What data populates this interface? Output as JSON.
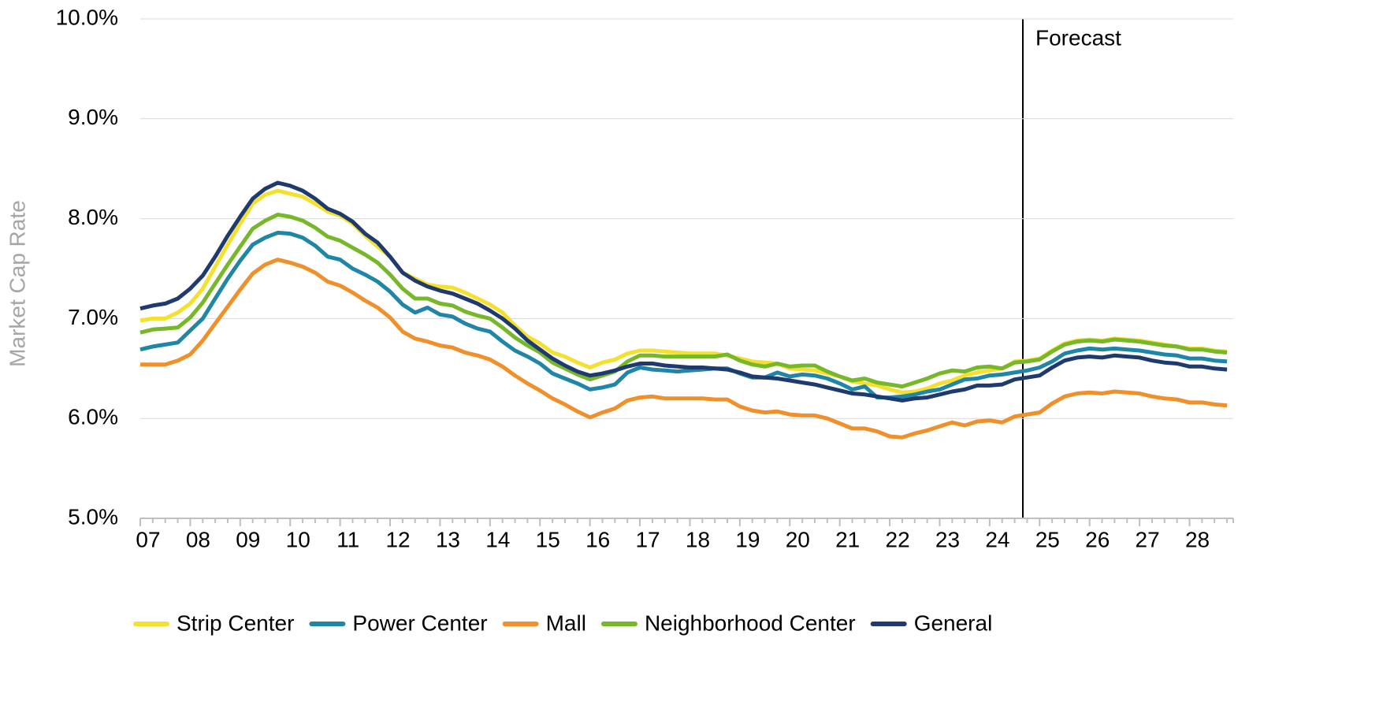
{
  "chart_data": {
    "type": "line",
    "y_label": "Market Cap Rate",
    "annotation": "Forecast",
    "categories": [
      "07",
      null,
      null,
      null,
      "08",
      null,
      null,
      null,
      "09",
      null,
      null,
      null,
      "10",
      null,
      null,
      null,
      "11",
      null,
      null,
      null,
      "12",
      null,
      null,
      null,
      "13",
      null,
      null,
      null,
      "14",
      null,
      null,
      null,
      "15",
      null,
      null,
      null,
      "16",
      null,
      null,
      null,
      "17",
      null,
      null,
      null,
      "18",
      null,
      null,
      null,
      "19",
      null,
      null,
      null,
      "20",
      null,
      null,
      null,
      "21",
      null,
      null,
      null,
      "22",
      null,
      null,
      null,
      "23",
      null,
      null,
      null,
      "24",
      null,
      null,
      null,
      "25",
      null,
      null,
      null,
      "26",
      null,
      null,
      null,
      "27",
      null,
      null,
      null,
      "28",
      null,
      null,
      null
    ],
    "ylim": [
      5,
      10
    ],
    "yticks": [
      {
        "value": 5,
        "label": "5.0%"
      },
      {
        "value": 6,
        "label": "6.0%"
      },
      {
        "value": 7,
        "label": "7.0%"
      },
      {
        "value": 8,
        "label": "8.0%"
      },
      {
        "value": 9,
        "label": "9.0%"
      },
      {
        "value": 10,
        "label": "10.0%"
      }
    ],
    "grid": true,
    "legend": "bottom",
    "series": [
      {
        "name": "Strip Center",
        "color": "#f5e030",
        "values": [
          6.98,
          7.0,
          7.0,
          7.06,
          7.15,
          7.3,
          7.52,
          7.74,
          7.95,
          8.15,
          8.24,
          8.28,
          8.25,
          8.22,
          8.15,
          8.07,
          8.03,
          7.95,
          7.83,
          7.72,
          7.62,
          7.46,
          7.4,
          7.34,
          7.32,
          7.31,
          7.26,
          7.2,
          7.14,
          7.06,
          6.93,
          6.82,
          6.75,
          6.66,
          6.62,
          6.56,
          6.51,
          6.56,
          6.59,
          6.65,
          6.68,
          6.68,
          6.67,
          6.66,
          6.65,
          6.65,
          6.65,
          6.63,
          6.6,
          6.57,
          6.56,
          6.55,
          6.5,
          6.49,
          6.48,
          6.45,
          6.42,
          6.37,
          6.35,
          6.33,
          6.29,
          6.26,
          6.27,
          6.3,
          6.35,
          6.38,
          6.43,
          6.46,
          6.48,
          6.5,
          6.57,
          6.58,
          6.6,
          6.68,
          6.75,
          6.78,
          6.79,
          6.78,
          6.8,
          6.79,
          6.78,
          6.76,
          6.74,
          6.72,
          6.7,
          6.7,
          6.68,
          6.67
        ]
      },
      {
        "name": "Power Center",
        "color": "#1f86a8",
        "values": [
          6.69,
          6.72,
          6.74,
          6.76,
          6.88,
          7.0,
          7.2,
          7.4,
          7.58,
          7.74,
          7.81,
          7.86,
          7.85,
          7.81,
          7.73,
          7.62,
          7.59,
          7.5,
          7.44,
          7.37,
          7.27,
          7.14,
          7.06,
          7.11,
          7.04,
          7.02,
          6.95,
          6.9,
          6.87,
          6.77,
          6.68,
          6.62,
          6.55,
          6.45,
          6.4,
          6.35,
          6.29,
          6.31,
          6.34,
          6.46,
          6.51,
          6.49,
          6.48,
          6.47,
          6.48,
          6.49,
          6.5,
          6.5,
          6.45,
          6.41,
          6.41,
          6.46,
          6.42,
          6.44,
          6.43,
          6.4,
          6.35,
          6.29,
          6.32,
          6.21,
          6.21,
          6.22,
          6.24,
          6.27,
          6.29,
          6.34,
          6.39,
          6.4,
          6.43,
          6.44,
          6.46,
          6.48,
          6.51,
          6.57,
          6.65,
          6.68,
          6.7,
          6.69,
          6.7,
          6.69,
          6.68,
          6.66,
          6.64,
          6.63,
          6.6,
          6.6,
          6.58,
          6.57
        ]
      },
      {
        "name": "Mall",
        "color": "#f0902a",
        "values": [
          6.54,
          6.54,
          6.54,
          6.58,
          6.64,
          6.78,
          6.95,
          7.12,
          7.29,
          7.45,
          7.54,
          7.59,
          7.56,
          7.52,
          7.46,
          7.37,
          7.33,
          7.26,
          7.18,
          7.11,
          7.01,
          6.87,
          6.8,
          6.77,
          6.73,
          6.71,
          6.66,
          6.63,
          6.59,
          6.52,
          6.43,
          6.35,
          6.28,
          6.2,
          6.14,
          6.07,
          6.01,
          6.06,
          6.1,
          6.18,
          6.21,
          6.22,
          6.2,
          6.2,
          6.2,
          6.2,
          6.19,
          6.19,
          6.12,
          6.08,
          6.06,
          6.07,
          6.04,
          6.03,
          6.03,
          6.0,
          5.95,
          5.9,
          5.9,
          5.87,
          5.82,
          5.81,
          5.85,
          5.88,
          5.92,
          5.96,
          5.93,
          5.97,
          5.98,
          5.96,
          6.02,
          6.04,
          6.06,
          6.15,
          6.22,
          6.25,
          6.26,
          6.25,
          6.27,
          6.26,
          6.25,
          6.22,
          6.2,
          6.19,
          6.16,
          6.16,
          6.14,
          6.13
        ]
      },
      {
        "name": "Neighborhood Center",
        "color": "#76b82a",
        "values": [
          6.86,
          6.89,
          6.9,
          6.91,
          7.01,
          7.16,
          7.35,
          7.54,
          7.72,
          7.9,
          7.98,
          8.04,
          8.02,
          7.98,
          7.91,
          7.82,
          7.78,
          7.71,
          7.64,
          7.56,
          7.44,
          7.3,
          7.2,
          7.2,
          7.15,
          7.13,
          7.07,
          7.03,
          7.0,
          6.91,
          6.81,
          6.73,
          6.66,
          6.56,
          6.5,
          6.44,
          6.39,
          6.43,
          6.47,
          6.57,
          6.63,
          6.63,
          6.62,
          6.62,
          6.62,
          6.62,
          6.62,
          6.64,
          6.58,
          6.54,
          6.52,
          6.55,
          6.52,
          6.53,
          6.53,
          6.47,
          6.42,
          6.38,
          6.4,
          6.36,
          6.34,
          6.32,
          6.36,
          6.4,
          6.45,
          6.48,
          6.47,
          6.51,
          6.52,
          6.5,
          6.56,
          6.57,
          6.59,
          6.67,
          6.74,
          6.77,
          6.78,
          6.77,
          6.79,
          6.78,
          6.77,
          6.75,
          6.73,
          6.72,
          6.69,
          6.69,
          6.67,
          6.66
        ]
      },
      {
        "name": "General",
        "color": "#1f3a6e",
        "values": [
          7.1,
          7.13,
          7.15,
          7.2,
          7.3,
          7.43,
          7.62,
          7.83,
          8.02,
          8.2,
          8.3,
          8.36,
          8.33,
          8.28,
          8.2,
          8.1,
          8.05,
          7.97,
          7.85,
          7.76,
          7.62,
          7.46,
          7.38,
          7.32,
          7.28,
          7.25,
          7.2,
          7.15,
          7.08,
          7.0,
          6.9,
          6.78,
          6.69,
          6.6,
          6.53,
          6.47,
          6.43,
          6.45,
          6.48,
          6.52,
          6.55,
          6.55,
          6.53,
          6.52,
          6.51,
          6.51,
          6.5,
          6.49,
          6.46,
          6.42,
          6.41,
          6.4,
          6.38,
          6.36,
          6.34,
          6.31,
          6.28,
          6.25,
          6.24,
          6.22,
          6.2,
          6.18,
          6.2,
          6.21,
          6.24,
          6.27,
          6.29,
          6.33,
          6.33,
          6.34,
          6.39,
          6.41,
          6.43,
          6.51,
          6.58,
          6.61,
          6.62,
          6.61,
          6.63,
          6.62,
          6.61,
          6.58,
          6.56,
          6.55,
          6.52,
          6.52,
          6.5,
          6.49
        ]
      }
    ]
  }
}
